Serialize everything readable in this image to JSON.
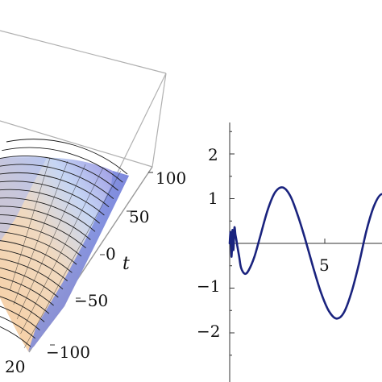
{
  "colors": {
    "box": "#b0b0b0",
    "mesh": "#1a1a1a",
    "surface_front": "#f4c8a0",
    "surface_mid": "#b8d0f0",
    "surface_edge": "#7a6ad8",
    "curve": "#1a237e",
    "axis": "#333333"
  },
  "chart_data": [
    {
      "type": "surface3d",
      "t_axis": {
        "label": "t",
        "ticks": [
          "100",
          "50",
          "0",
          "−50",
          "−100"
        ]
      },
      "x_axis": {
        "ticks": [
          "20"
        ]
      },
      "trough_t": [
        0,
        15,
        30,
        45,
        60,
        75,
        90,
        100
      ],
      "note": "wave surface; only right portion of the plot box is visible"
    },
    {
      "type": "line",
      "x_range": [
        -0.3,
        8.8
      ],
      "ylim": [
        -2.6,
        2.7
      ],
      "x_ticks": [
        "5"
      ],
      "x_tick_values": [
        5
      ],
      "y_ticks": [
        "2",
        "1",
        "−1",
        "−2"
      ],
      "y_tick_values": [
        2,
        1,
        -1,
        -2
      ],
      "series": [
        {
          "x": [
            0.0,
            0.05,
            0.1,
            0.15,
            0.2,
            0.25,
            0.3,
            0.35,
            0.4,
            0.5,
            0.6,
            0.8,
            1.0,
            1.3,
            1.6,
            2.0,
            2.4,
            2.8,
            3.2,
            3.6,
            4.0,
            4.4,
            4.8,
            5.2,
            5.6,
            6.0,
            6.4,
            6.8,
            7.2,
            7.6,
            8.0,
            8.4,
            8.8
          ],
          "y": [
            0.0,
            0.25,
            -0.3,
            0.3,
            -0.15,
            0.35,
            0.2,
            0.08,
            -0.05,
            -0.3,
            -0.55,
            -0.68,
            -0.6,
            -0.3,
            0.15,
            0.75,
            1.15,
            1.25,
            1.05,
            0.6,
            0.05,
            -0.55,
            -1.1,
            -1.5,
            -1.68,
            -1.55,
            -1.1,
            -0.45,
            0.3,
            0.85,
            1.1,
            0.9,
            0.4
          ]
        }
      ]
    }
  ]
}
